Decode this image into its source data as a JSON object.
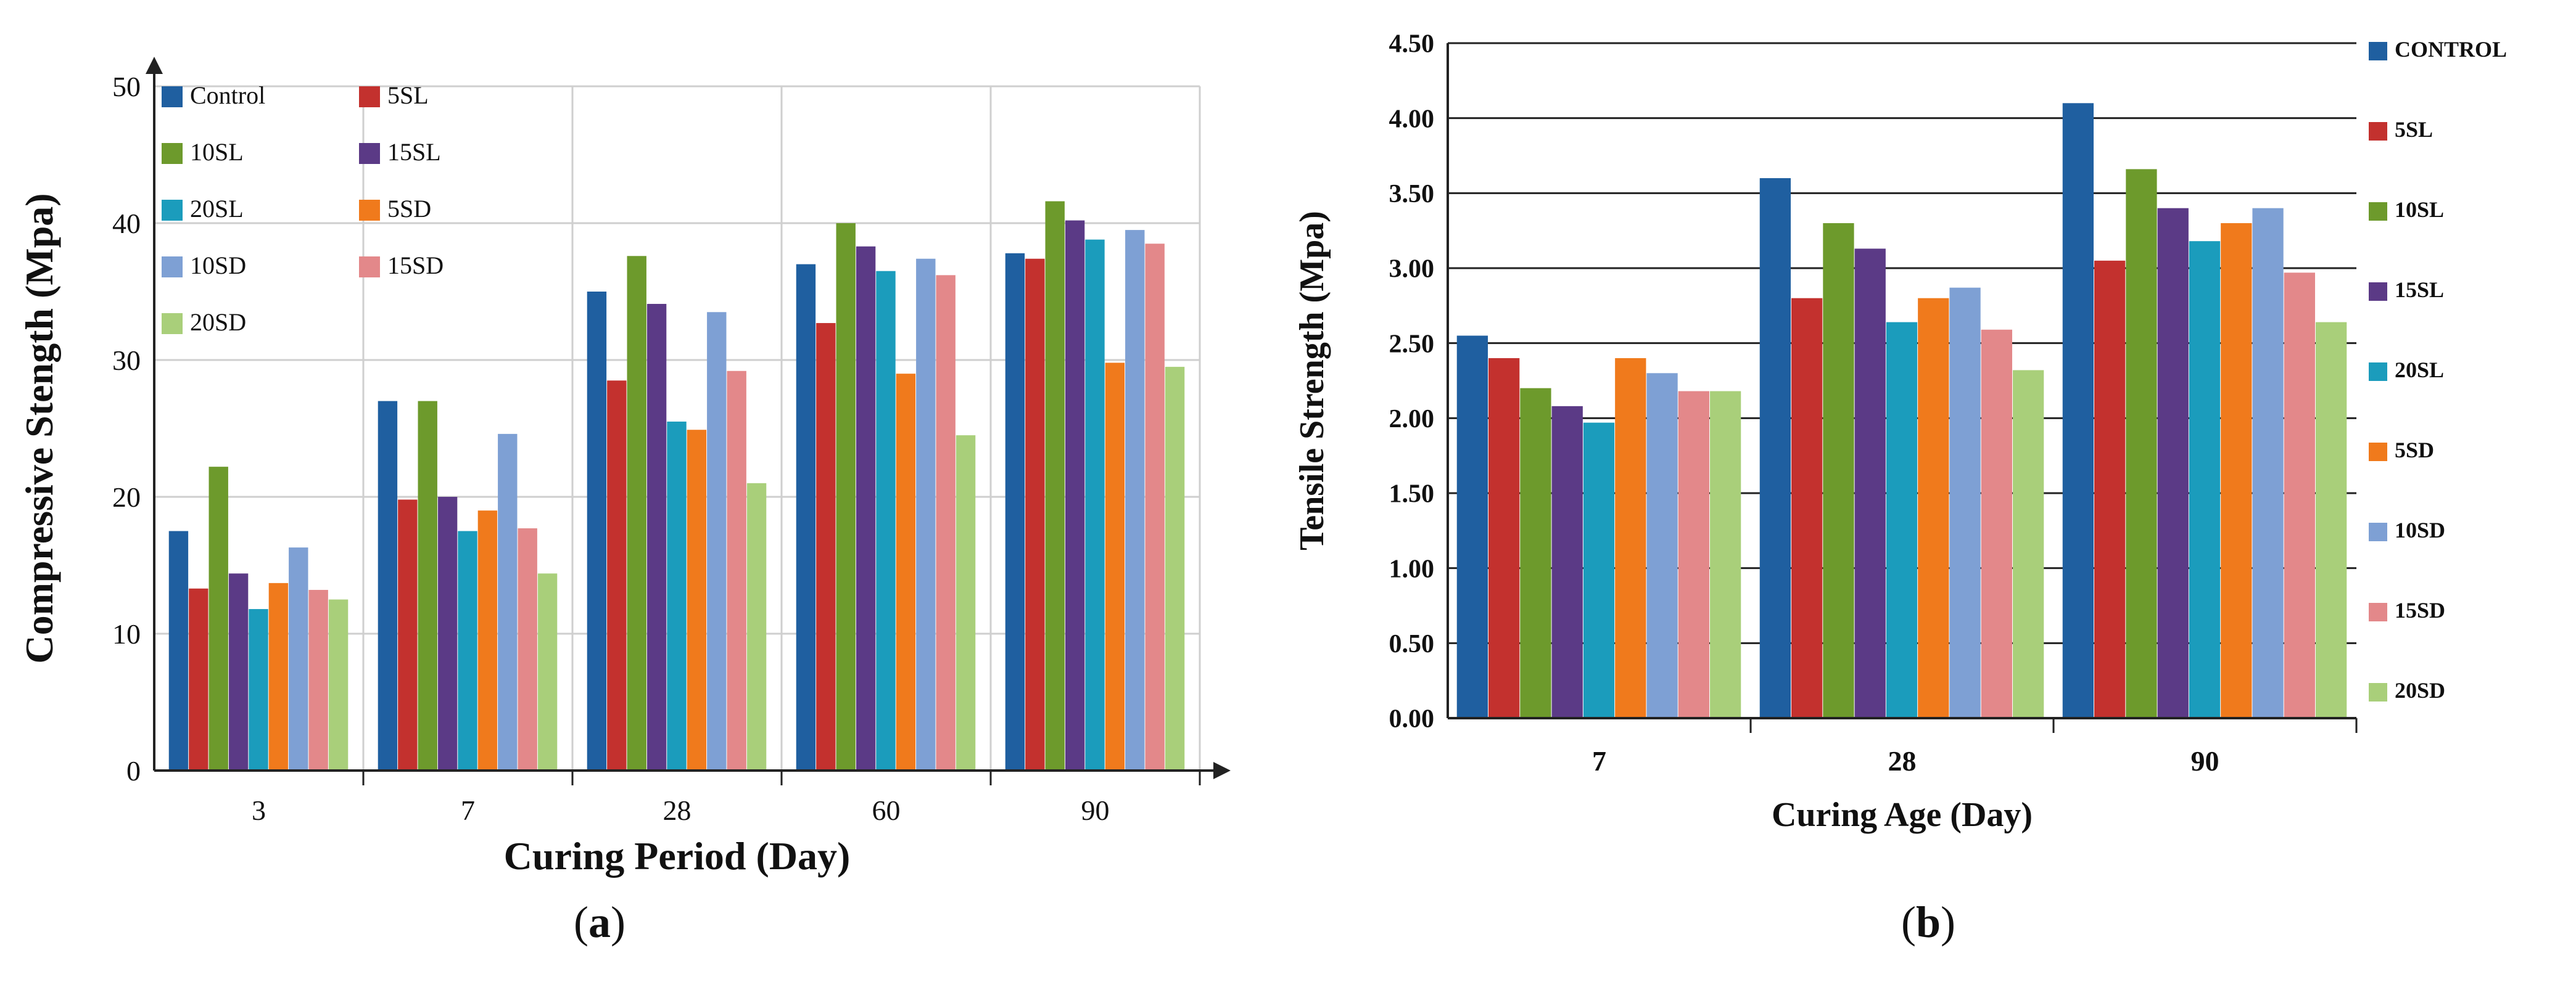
{
  "colors": {
    "Control": "#1f5fa0",
    "5SL": "#c3312e",
    "10SL": "#6d9a2c",
    "15SL": "#5b3a86",
    "20SL": "#1b9cbc",
    "5SD": "#f07a1c",
    "10SD": "#7ea0d4",
    "15SD": "#e3888a",
    "20SD": "#a9cf7a"
  },
  "captions": {
    "a_open": "(",
    "a_letter": "a",
    "a_close": ")",
    "b_open": "(",
    "b_letter": "b",
    "b_close": ")"
  },
  "chart_data": [
    {
      "type": "bar",
      "panel": "a",
      "title": "",
      "xlabel": "Curing Period (Day)",
      "ylabel": "Compressive Stength (Mpa)",
      "ylim": [
        0,
        50
      ],
      "yticks": [
        "0",
        "10",
        "20",
        "30",
        "40",
        "50"
      ],
      "grid": true,
      "legend_position": "top-left",
      "categories": [
        "3",
        "7",
        "28",
        "60",
        "90"
      ],
      "series": [
        {
          "name": "Control",
          "key": "Control",
          "values": [
            17.5,
            27,
            35,
            37,
            37.8
          ]
        },
        {
          "name": "5SL",
          "key": "5SL",
          "values": [
            13.3,
            19.8,
            28.5,
            32.7,
            37.4
          ]
        },
        {
          "name": "10SL",
          "key": "10SL",
          "values": [
            22.2,
            27,
            37.6,
            40,
            41.6
          ]
        },
        {
          "name": "15SL",
          "key": "15SL",
          "values": [
            14.4,
            20,
            34.1,
            38.3,
            40.2
          ]
        },
        {
          "name": "20SL",
          "key": "20SL",
          "values": [
            11.8,
            17.5,
            25.5,
            36.5,
            38.8
          ]
        },
        {
          "name": "5SD",
          "key": "5SD",
          "values": [
            13.7,
            19,
            24.9,
            29,
            29.8
          ]
        },
        {
          "name": "10SD",
          "key": "10SD",
          "values": [
            16.3,
            24.6,
            33.5,
            37.4,
            39.5
          ]
        },
        {
          "name": "15SD",
          "key": "15SD",
          "values": [
            13.2,
            17.7,
            29.2,
            36.2,
            38.5
          ]
        },
        {
          "name": "20SD",
          "key": "20SD",
          "values": [
            12.5,
            14.4,
            21,
            24.5,
            29.5
          ]
        }
      ]
    },
    {
      "type": "bar",
      "panel": "b",
      "title": "",
      "xlabel": "Curing Age (Day)",
      "ylabel": "Tensile Strength (Mpa)",
      "ylim": [
        0,
        4.5
      ],
      "yticks": [
        "0.00",
        "0.50",
        "1.00",
        "1.50",
        "2.00",
        "2.50",
        "3.00",
        "3.50",
        "4.00",
        "4.50"
      ],
      "grid": true,
      "legend_position": "right",
      "categories": [
        "7",
        "28",
        "90"
      ],
      "series": [
        {
          "name": "CONTROL",
          "key": "Control",
          "values": [
            2.55,
            3.6,
            4.1
          ]
        },
        {
          "name": "5SL",
          "key": "5SL",
          "values": [
            2.4,
            2.8,
            3.05
          ]
        },
        {
          "name": "10SL",
          "key": "10SL",
          "values": [
            2.2,
            3.3,
            3.66
          ]
        },
        {
          "name": "15SL",
          "key": "15SL",
          "values": [
            2.08,
            3.13,
            3.4
          ]
        },
        {
          "name": "20SL",
          "key": "20SL",
          "values": [
            1.97,
            2.64,
            3.18
          ]
        },
        {
          "name": "5SD",
          "key": "5SD",
          "values": [
            2.4,
            2.8,
            3.3
          ]
        },
        {
          "name": "10SD",
          "key": "10SD",
          "values": [
            2.3,
            2.87,
            3.4
          ]
        },
        {
          "name": "15SD",
          "key": "15SD",
          "values": [
            2.18,
            2.59,
            2.97
          ]
        },
        {
          "name": "20SD",
          "key": "20SD",
          "values": [
            2.18,
            2.32,
            2.64
          ]
        }
      ]
    }
  ]
}
